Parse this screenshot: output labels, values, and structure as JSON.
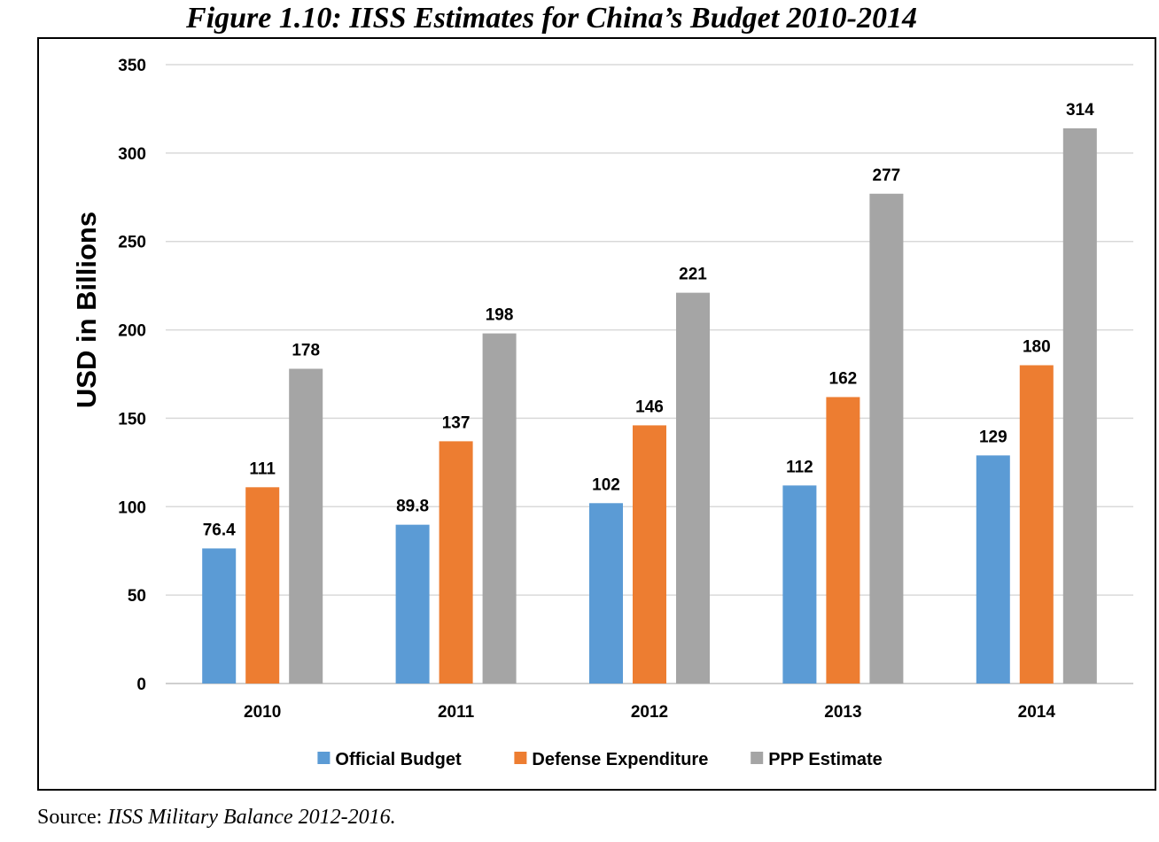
{
  "figure_title": "Figure 1.10: IISS Estimates for China’s Budget 2010-2014",
  "source": {
    "prefix": "Source: ",
    "text": "IISS Military Balance 2012-2016."
  },
  "chart_data": {
    "type": "bar",
    "title": "Figure 1.10: IISS Estimates for China’s Budget 2010-2014",
    "xlabel": "",
    "ylabel": "USD in Billions",
    "ylim": [
      0,
      350
    ],
    "yticks": [
      0,
      50,
      100,
      150,
      200,
      250,
      300,
      350
    ],
    "grid": true,
    "legend_position": "bottom",
    "categories": [
      "2010",
      "2011",
      "2012",
      "2013",
      "2014"
    ],
    "series": [
      {
        "name": "Official Budget",
        "color": "#5b9bd5",
        "values": [
          76.4,
          89.8,
          102,
          112,
          129
        ],
        "labels": [
          "76.4",
          "89.8",
          "102",
          "112",
          "129"
        ]
      },
      {
        "name": "Defense Expenditure",
        "color": "#ed7d31",
        "values": [
          111,
          137,
          146,
          162,
          180
        ],
        "labels": [
          "111",
          "137",
          "146",
          "162",
          "180"
        ]
      },
      {
        "name": "PPP Estimate",
        "color": "#a5a5a5",
        "values": [
          178,
          198,
          221,
          277,
          314
        ],
        "labels": [
          "178",
          "198",
          "221",
          "277",
          "314"
        ]
      }
    ]
  }
}
